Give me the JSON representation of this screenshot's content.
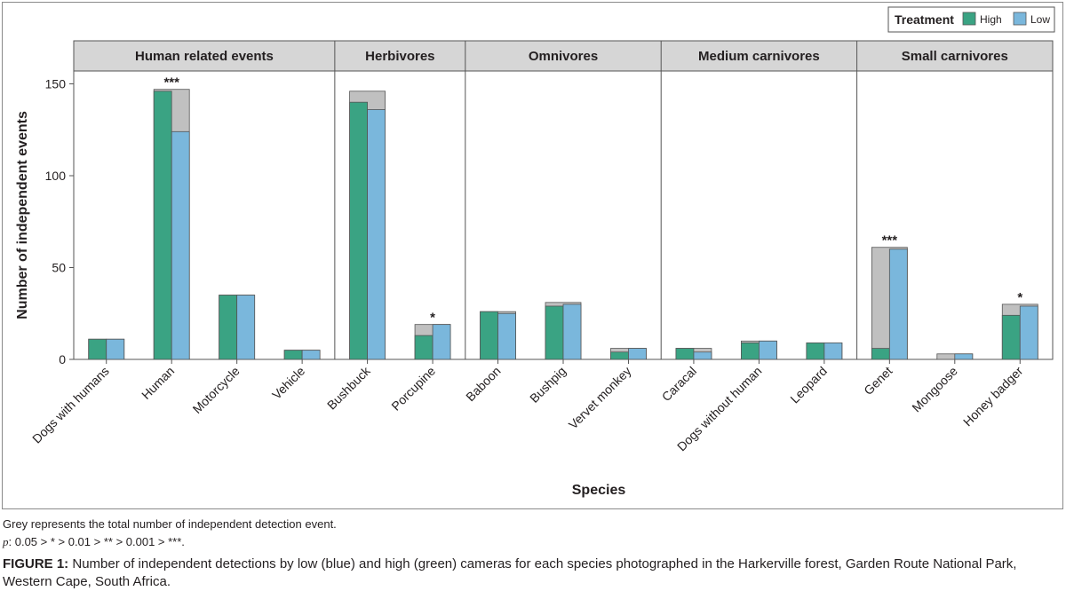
{
  "chart_data": {
    "type": "bar",
    "title": "",
    "xlabel": "Species",
    "ylabel": "Number of independent events",
    "ylim": [
      0,
      157
    ],
    "yticks": [
      0,
      50,
      100,
      150
    ],
    "grid": false,
    "legend": {
      "title": "Treatment",
      "placement": "top-right",
      "entries": [
        {
          "name": "High",
          "color": "#3aa383"
        },
        {
          "name": "Low",
          "color": "#7ab7dc"
        }
      ]
    },
    "total_color": "#c0c0c0",
    "groups": [
      {
        "label": "Human related events",
        "categories": [
          "Dogs with humans",
          "Human",
          "Motorcycle",
          "Vehicle"
        ]
      },
      {
        "label": "Herbivores",
        "categories": [
          "Bushbuck",
          "Porcupine"
        ]
      },
      {
        "label": "Omnivores",
        "categories": [
          "Baboon",
          "Bushpig",
          "Vervet monkey"
        ]
      },
      {
        "label": "Medium carnivores",
        "categories": [
          "Caracal",
          "Dogs without human",
          "Leopard"
        ]
      },
      {
        "label": "Small carnivores",
        "categories": [
          "Genet",
          "Mongoose",
          "Honey badger"
        ]
      }
    ],
    "categories": [
      "Dogs with humans",
      "Human",
      "Motorcycle",
      "Vehicle",
      "Bushbuck",
      "Porcupine",
      "Baboon",
      "Bushpig",
      "Vervet monkey",
      "Caracal",
      "Dogs without human",
      "Leopard",
      "Genet",
      "Mongoose",
      "Honey badger"
    ],
    "series": [
      {
        "name": "High",
        "values": [
          11,
          146,
          35,
          5,
          140,
          13,
          26,
          29,
          4,
          6,
          9,
          9,
          6,
          0,
          24
        ]
      },
      {
        "name": "Low",
        "values": [
          11,
          124,
          35,
          5,
          136,
          19,
          25,
          30,
          6,
          4,
          10,
          9,
          60,
          3,
          29
        ]
      },
      {
        "name": "Total (grey)",
        "values": [
          11,
          147,
          35,
          5,
          146,
          19,
          26,
          31,
          6,
          6,
          10,
          9,
          61,
          3,
          30
        ]
      }
    ],
    "significance": [
      "",
      "***",
      "",
      "",
      "",
      "*",
      "",
      "",
      "",
      "",
      "",
      "",
      "***",
      "",
      "*"
    ]
  },
  "notes": {
    "grey": "Grey represents the total number of independent detection event.",
    "p_symbol": "p",
    "p_text": ": 0.05 > * > 0.01 > ** > 0.001 > ***."
  },
  "caption": {
    "label": "FIGURE 1:",
    "text": " Number of independent detections by low (blue) and high (green) cameras for each species photographed in the Harkerville forest, Garden Route National Park, Western Cape, South Africa."
  }
}
